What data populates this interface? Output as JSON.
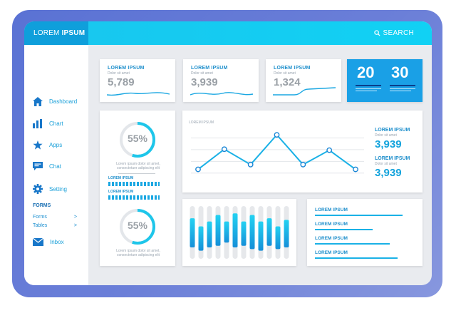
{
  "brand": {
    "prefix": "LOREM",
    "strong": "IPSUM"
  },
  "search_label": "SEARCH",
  "sidebar": {
    "items": [
      {
        "label": "Dashboard"
      },
      {
        "label": "Chart"
      },
      {
        "label": "Apps"
      },
      {
        "label": "Chat"
      },
      {
        "label": "Setting"
      }
    ],
    "forms_heading": "FORMS",
    "sub_items": [
      {
        "label": "Forms",
        "arrow": ">"
      },
      {
        "label": "Tables",
        "arrow": ">"
      }
    ],
    "inbox_label": "Inbox"
  },
  "stat_cards": [
    {
      "title": "LOREM IPSUM",
      "subtitle": "Dolor sit amet",
      "value": "5,789"
    },
    {
      "title": "LOREM IPSUM",
      "subtitle": "Dolor sit amet",
      "value": "3,939"
    },
    {
      "title": "LOREM IPSUM",
      "subtitle": "Dolor sit amet",
      "value": "1,324"
    }
  ],
  "highlight_numbers": [
    "20",
    "30"
  ],
  "gauge": {
    "top_value": "55%",
    "top_caption": "Lorem ipsum dolor sit amet, consectetuer adipiscing elit",
    "bar1_label": "LOREM IPSUM",
    "bar2_label": "LOREM IPSUM",
    "bottom_value": "55%",
    "bottom_caption": "Lorem ipsum dolor sit amet, consectetuer adipiscing elit"
  },
  "line_chart": {
    "title": "LOREM IPSUM",
    "stats": [
      {
        "title": "LOREM IPSUM",
        "subtitle": "Dolor sit amet",
        "value": "3,939"
      },
      {
        "title": "LOREM IPSUM",
        "subtitle": "Dolor sit amet",
        "value": "3,939"
      }
    ]
  },
  "chart_data": [
    {
      "type": "line",
      "title": "LOREM IPSUM",
      "x": [
        1,
        2,
        3,
        4,
        5,
        6,
        7
      ],
      "values": [
        1,
        3.1,
        1.5,
        4.6,
        1.5,
        3.0,
        1.0
      ],
      "ylim": [
        0,
        5.5
      ],
      "grid": true
    },
    {
      "type": "bar",
      "categories": [
        "1",
        "2",
        "3",
        "4",
        "5",
        "6",
        "7",
        "8",
        "9",
        "10",
        "11",
        "12"
      ],
      "values_low": [
        1.4,
        1.0,
        1.4,
        1.6,
        2.0,
        1.4,
        1.6,
        1.2,
        1.0,
        1.6,
        1.2,
        1.4
      ],
      "values_high": [
        5.0,
        4.0,
        4.6,
        5.4,
        4.6,
        5.6,
        4.6,
        5.4,
        4.6,
        5.0,
        4.0,
        4.8
      ],
      "ylim": [
        0,
        6.5
      ]
    }
  ],
  "progress_list": [
    {
      "label": "LOREM IPSUM",
      "value": 0.88
    },
    {
      "label": "LOREM IPSUM",
      "value": 0.58
    },
    {
      "label": "LOREM IPSUM",
      "value": 0.75
    },
    {
      "label": "LOREM IPSUM",
      "value": 0.83
    }
  ],
  "colors": {
    "accent": "#13a3dc",
    "topbar": "#11d1f4",
    "logo_bg": "#0f9fdb",
    "highlight_card": "#1aa0e6"
  }
}
